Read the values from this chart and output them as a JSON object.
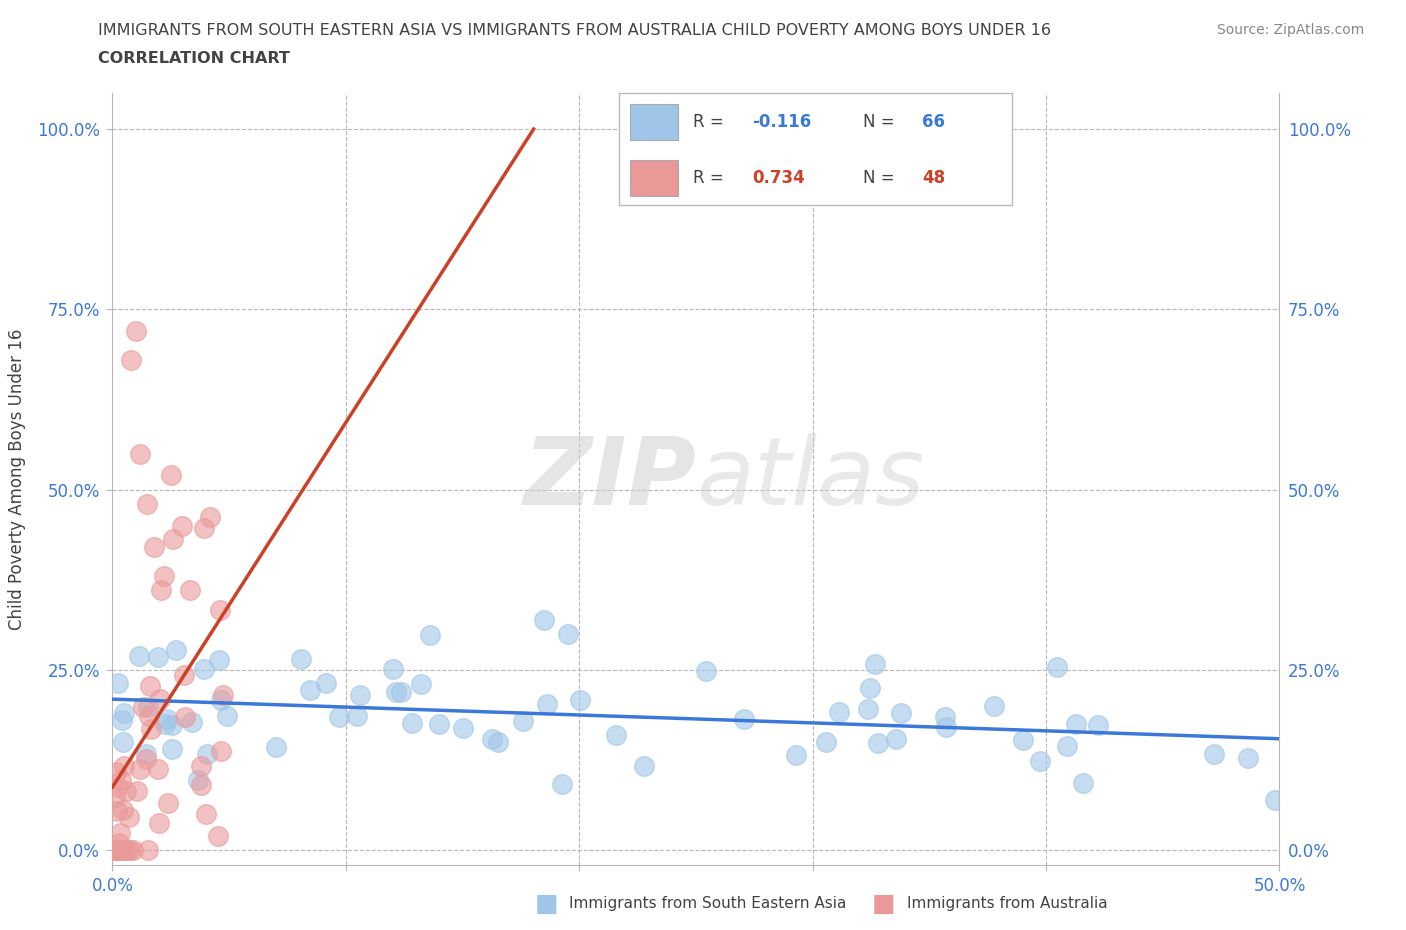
{
  "title_line1": "IMMIGRANTS FROM SOUTH EASTERN ASIA VS IMMIGRANTS FROM AUSTRALIA CHILD POVERTY AMONG BOYS UNDER 16",
  "title_line2": "CORRELATION CHART",
  "source_text": "Source: ZipAtlas.com",
  "ylabel": "Child Poverty Among Boys Under 16",
  "watermark_zip": "ZIP",
  "watermark_atlas": "atlas",
  "xlim": [
    0.0,
    0.5
  ],
  "ylim": [
    -0.02,
    1.05
  ],
  "ytick_vals": [
    0.0,
    0.25,
    0.5,
    0.75,
    1.0
  ],
  "ytick_labels": [
    "0.0%",
    "25.0%",
    "50.0%",
    "75.0%",
    "100.0%"
  ],
  "xtick_vals": [
    0.0,
    0.1,
    0.2,
    0.3,
    0.4,
    0.5
  ],
  "xtick_labels": [
    "0.0%",
    "",
    "",
    "",
    "",
    "50.0%"
  ],
  "color_blue": "#9fc5e8",
  "color_pink": "#ea9999",
  "color_blue_line": "#3c78d8",
  "color_pink_line": "#cc4125",
  "color_text_blue": "#3c78d8",
  "color_text_pink": "#cc4125",
  "color_text_dark": "#434343",
  "background_color": "#ffffff",
  "grid_color": "#b7b7b7",
  "legend_R1": "-0.116",
  "legend_N1": "66",
  "legend_R2": "0.734",
  "legend_N2": "48"
}
